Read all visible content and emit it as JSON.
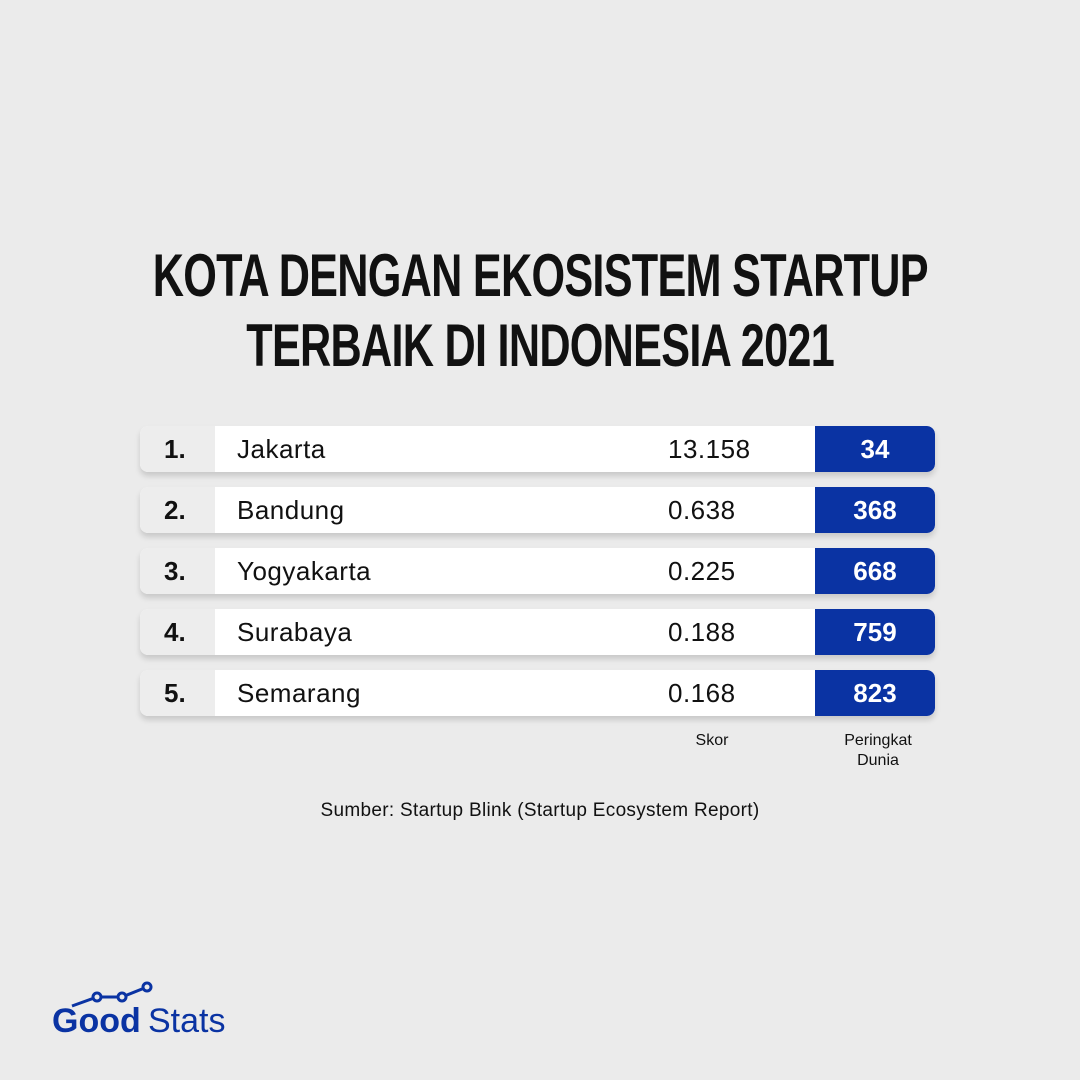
{
  "title": [
    "KOTA DENGAN EKOSISTEM STARTUP",
    "TERBAIK DI INDONESIA 2021"
  ],
  "chart_data": {
    "type": "table",
    "columns": [
      "",
      "",
      "Skor",
      "Peringkat Dunia"
    ],
    "rows": [
      {
        "rank": "1.",
        "city": "Jakarta",
        "score": "13.158",
        "world_rank": "34"
      },
      {
        "rank": "2.",
        "city": "Bandung",
        "score": "0.638",
        "world_rank": "368"
      },
      {
        "rank": "3.",
        "city": "Yogyakarta",
        "score": "0.225",
        "world_rank": "668"
      },
      {
        "rank": "4.",
        "city": "Surabaya",
        "score": "0.188",
        "world_rank": "759"
      },
      {
        "rank": "5.",
        "city": "Semarang",
        "score": "0.168",
        "world_rank": "823"
      }
    ]
  },
  "labels": {
    "score": "Skor",
    "world_line1": "Peringkat",
    "world_line2": "Dunia"
  },
  "source": "Sumber: Startup Blink (Startup Ecosystem Report)",
  "logo": {
    "part1": "Good",
    "part2": "Stats"
  },
  "colors": {
    "accent": "#0a33a3",
    "background": "#ebebeb"
  }
}
